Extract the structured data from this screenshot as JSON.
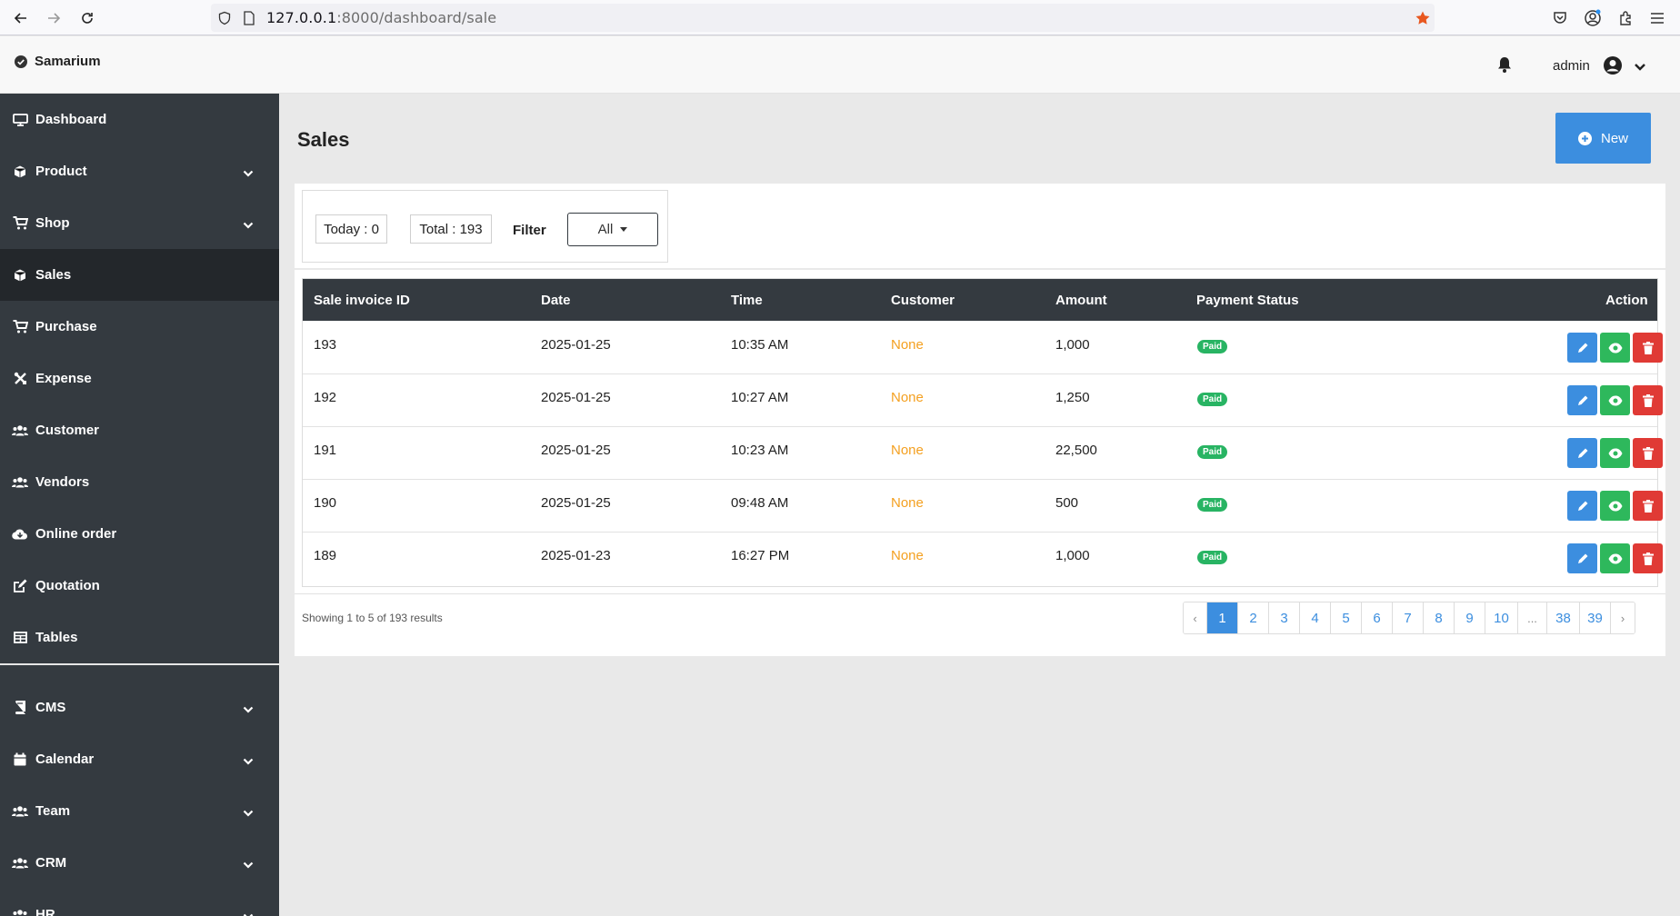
{
  "browser": {
    "url_host": "127.0.0.1",
    "url_rest": ":8000/dashboard/sale"
  },
  "header": {
    "brand": "Samarium",
    "user": "admin"
  },
  "sidebar": {
    "items": [
      {
        "label": "Dashboard",
        "icon": "desktop-icon",
        "has_chevron": false,
        "active": false
      },
      {
        "label": "Product",
        "icon": "cube-icon",
        "has_chevron": true,
        "active": false
      },
      {
        "label": "Shop",
        "icon": "cart-icon",
        "has_chevron": true,
        "active": false
      },
      {
        "label": "Sales",
        "icon": "cube-icon",
        "has_chevron": false,
        "active": true
      },
      {
        "label": "Purchase",
        "icon": "cart-icon",
        "has_chevron": false,
        "active": false
      },
      {
        "label": "Expense",
        "icon": "tools-icon",
        "has_chevron": false,
        "active": false
      },
      {
        "label": "Customer",
        "icon": "users-icon",
        "has_chevron": false,
        "active": false
      },
      {
        "label": "Vendors",
        "icon": "users-icon",
        "has_chevron": false,
        "active": false
      },
      {
        "label": "Online order",
        "icon": "cloud-icon",
        "has_chevron": false,
        "active": false
      },
      {
        "label": "Quotation",
        "icon": "edit-icon",
        "has_chevron": false,
        "active": false
      },
      {
        "label": "Tables",
        "icon": "table-icon",
        "has_chevron": false,
        "active": false
      },
      {
        "label": "CMS",
        "icon": "book-icon",
        "has_chevron": true,
        "active": false
      },
      {
        "label": "Calendar",
        "icon": "calendar-icon",
        "has_chevron": true,
        "active": false
      },
      {
        "label": "Team",
        "icon": "users-icon",
        "has_chevron": true,
        "active": false
      },
      {
        "label": "CRM",
        "icon": "users-icon",
        "has_chevron": true,
        "active": false
      },
      {
        "label": "HR",
        "icon": "users-icon",
        "has_chevron": true,
        "active": false
      }
    ]
  },
  "main": {
    "title": "Sales",
    "new_label": "New",
    "stats": {
      "today": "Today : 0",
      "total": "Total : 193",
      "filter_label": "Filter",
      "filter_value": "All"
    },
    "table": {
      "columns": [
        "Sale invoice ID",
        "Date",
        "Time",
        "Customer",
        "Amount",
        "Payment Status",
        "Action"
      ],
      "rows": [
        {
          "id": "193",
          "date": "2025-01-25",
          "time": "10:35 AM",
          "customer": "None",
          "amount": "1,000",
          "status": "Paid"
        },
        {
          "id": "192",
          "date": "2025-01-25",
          "time": "10:27 AM",
          "customer": "None",
          "amount": "1,250",
          "status": "Paid"
        },
        {
          "id": "191",
          "date": "2025-01-25",
          "time": "10:23 AM",
          "customer": "None",
          "amount": "22,500",
          "status": "Paid"
        },
        {
          "id": "190",
          "date": "2025-01-25",
          "time": "09:48 AM",
          "customer": "None",
          "amount": "500",
          "status": "Paid"
        },
        {
          "id": "189",
          "date": "2025-01-23",
          "time": "16:27 PM",
          "customer": "None",
          "amount": "1,000",
          "status": "Paid"
        }
      ]
    },
    "showing": "Showing 1 to 5 of 193 results",
    "pagination": [
      "‹",
      "1",
      "2",
      "3",
      "4",
      "5",
      "6",
      "7",
      "8",
      "9",
      "10",
      "...",
      "38",
      "39",
      "›"
    ],
    "current_page": "1"
  },
  "colors": {
    "sidebar_bg": "#343a40",
    "primary": "#3c8edf",
    "success": "#2eb85c",
    "danger": "#e03a35",
    "customer_none": "#f4a020"
  }
}
